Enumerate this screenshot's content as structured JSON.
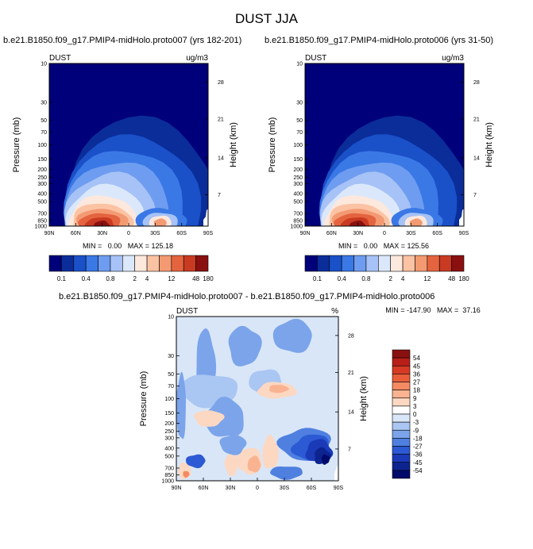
{
  "title": "DUST JJA",
  "chart_data": [
    {
      "type": "heatmap",
      "subtitle": "b.e21.B1850.f09_g17.PMIP4-midHolo.proto007 (yrs 182-201)",
      "left_label": "DUST",
      "right_label": "ug/m3",
      "ylabel": "Pressure (mb)",
      "ylabel_right": "Height (km)",
      "x_ticks": [
        "90N",
        "60N",
        "30N",
        "0",
        "30S",
        "60S",
        "90S"
      ],
      "y_ticks": [
        "10",
        "30",
        "50",
        "70",
        "100",
        "150",
        "200",
        "250",
        "300",
        "400",
        "500",
        "700",
        "850",
        "1000"
      ],
      "height_ticks": [
        "28",
        "21",
        "14",
        "7"
      ],
      "ylim": [
        1000,
        10
      ],
      "xlim": [
        90,
        -90
      ],
      "min_max": "MIN =   0.00   MAX = 125.18",
      "colorbar_labels": [
        "0.1",
        "0.4",
        "0.8",
        "2",
        "4",
        "12",
        "48",
        "180"
      ]
    },
    {
      "type": "heatmap",
      "subtitle": "b.e21.B1850.f09_g17.PMIP4-midHolo.proto006 (yrs 31-50)",
      "left_label": "DUST",
      "right_label": "ug/m3",
      "ylabel": "Pressure (mb)",
      "ylabel_right": "Height (km)",
      "x_ticks": [
        "90N",
        "60N",
        "30N",
        "0",
        "30S",
        "60S",
        "90S"
      ],
      "y_ticks": [
        "10",
        "30",
        "50",
        "70",
        "100",
        "150",
        "200",
        "250",
        "300",
        "400",
        "500",
        "700",
        "850",
        "1000"
      ],
      "height_ticks": [
        "28",
        "21",
        "14",
        "7"
      ],
      "ylim": [
        1000,
        10
      ],
      "xlim": [
        90,
        -90
      ],
      "min_max": "MIN =   0.00   MAX = 125.56",
      "colorbar_labels": [
        "0.1",
        "0.4",
        "0.8",
        "2",
        "4",
        "12",
        "48",
        "180"
      ]
    },
    {
      "type": "heatmap",
      "subtitle": "b.e21.B1850.f09_g17.PMIP4-midHolo.proto007 - b.e21.B1850.f09_g17.PMIP4-midHolo.proto006",
      "left_label": "DUST",
      "right_label": "%",
      "ylabel": "Pressure (mb)",
      "ylabel_right": "Height (km)",
      "x_ticks": [
        "90N",
        "60N",
        "30N",
        "0",
        "30S",
        "60S",
        "90S"
      ],
      "y_ticks": [
        "10",
        "30",
        "50",
        "70",
        "100",
        "150",
        "200",
        "250",
        "300",
        "400",
        "500",
        "700",
        "850",
        "1000"
      ],
      "height_ticks": [
        "28",
        "21",
        "14",
        "7"
      ],
      "ylim": [
        1000,
        10
      ],
      "xlim": [
        90,
        -90
      ],
      "min_max": "MIN = -147.90   MAX =  37.16",
      "colorbar_labels": [
        "54",
        "45",
        "36",
        "27",
        "18",
        "9",
        "3",
        "0",
        "-3",
        "-9",
        "-18",
        "-27",
        "-36",
        "-45",
        "-54"
      ]
    }
  ],
  "colors": {
    "abs_scale": [
      "#00007a",
      "#0a2d9a",
      "#1a50c8",
      "#3a78e6",
      "#6e9cf0",
      "#a6c2f6",
      "#dbe8fb",
      "#fde8dd",
      "#fbc3a3",
      "#f39a73",
      "#e4643f",
      "#c93a22",
      "#8a1010"
    ],
    "diff_scale": [
      "#8a1010",
      "#b81f18",
      "#d63a24",
      "#ea5d3a",
      "#f58a62",
      "#f9b391",
      "#fcd8c2",
      "#d9e6f8",
      "#aac6f2",
      "#7ba4ea",
      "#4f80e0",
      "#2c5ad4",
      "#1a3ab8",
      "#0d2390",
      "#000a6a"
    ]
  }
}
